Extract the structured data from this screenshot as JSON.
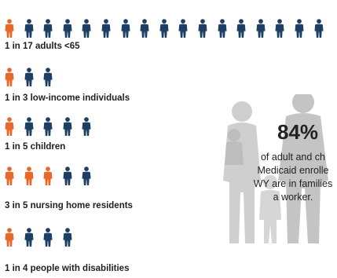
{
  "colors": {
    "highlight": "#e8682c",
    "base": "#1c3f63",
    "silhouette": "#c9c9c9"
  },
  "rows": [
    {
      "label": "1 in 17 adults <65",
      "highlighted": 1,
      "total": 17
    },
    {
      "label": "1 in 3 low-income individuals",
      "highlighted": 1,
      "total": 3
    },
    {
      "label": "1 in 5 children",
      "highlighted": 1,
      "total": 5
    },
    {
      "label": "3 in 5 nursing home residents",
      "highlighted": 3,
      "total": 5
    },
    {
      "label": "1 in 4 people with disabilities",
      "highlighted": 1,
      "total": 4
    }
  ],
  "callout": {
    "percent": "84%",
    "lines": [
      "of adult and ch",
      "Medicaid enrolle",
      "WY are in families",
      "a worker."
    ]
  }
}
